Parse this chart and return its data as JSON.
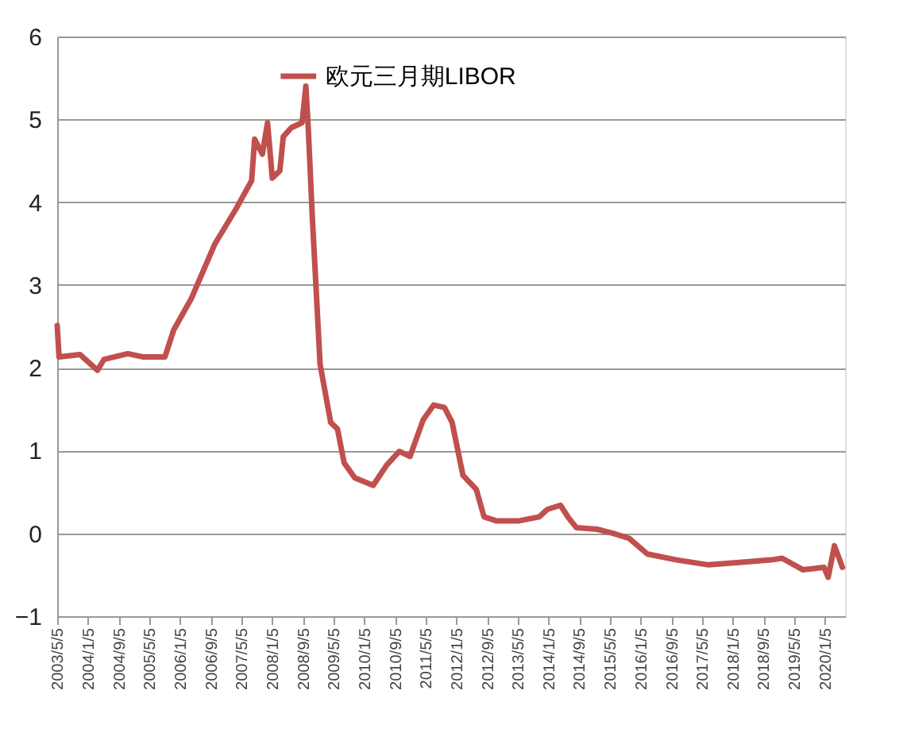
{
  "chart_data": {
    "type": "line",
    "x": [
      "2003-05-05",
      "2003-05-20",
      "2003-11-01",
      "2004-03-20",
      "2004-05-10",
      "2004-11-15",
      "2005-03-20",
      "2005-09-05",
      "2005-11-15",
      "2006-04-01",
      "2006-10-08",
      "2007-03-20",
      "2007-07-25",
      "2007-08-18",
      "2007-10-18",
      "2007-11-28",
      "2008-01-05",
      "2008-03-05",
      "2008-04-01",
      "2008-06-05",
      "2008-08-28",
      "2008-09-27",
      "2008-10-15",
      "2008-11-18",
      "2009-01-18",
      "2009-04-12",
      "2009-06-05",
      "2009-07-28",
      "2009-10-20",
      "2010-03-15",
      "2010-06-28",
      "2010-10-08",
      "2011-01-01",
      "2011-04-15",
      "2011-07-08",
      "2011-10-01",
      "2011-12-01",
      "2012-02-25",
      "2012-06-10",
      "2012-08-10",
      "2012-11-20",
      "2013-05-08",
      "2013-10-22",
      "2013-12-25",
      "2014-04-08",
      "2014-06-10",
      "2014-08-12",
      "2015-01-25",
      "2015-05-30",
      "2015-10-05",
      "2016-02-28",
      "2016-10-15",
      "2017-06-25",
      "2018-03-01",
      "2018-11-05",
      "2019-01-30",
      "2019-07-15",
      "2019-12-28",
      "2020-01-30",
      "2020-03-20",
      "2020-05-22"
    ],
    "series": [
      {
        "name": "欧元三月期LIBOR",
        "color": "#c0504d",
        "values": [
          2.51,
          2.13,
          2.16,
          1.97,
          2.1,
          2.17,
          2.13,
          2.13,
          2.46,
          2.83,
          3.5,
          3.91,
          4.26,
          4.76,
          4.58,
          4.96,
          4.29,
          4.38,
          4.79,
          4.9,
          4.96,
          5.4,
          4.93,
          3.8,
          2.04,
          1.34,
          1.26,
          0.85,
          0.67,
          0.58,
          0.82,
          0.99,
          0.93,
          1.37,
          1.55,
          1.52,
          1.34,
          0.7,
          0.53,
          0.2,
          0.15,
          0.15,
          0.2,
          0.29,
          0.34,
          0.19,
          0.07,
          0.05,
          0.0,
          -0.06,
          -0.25,
          -0.32,
          -0.38,
          -0.35,
          -0.32,
          -0.3,
          -0.44,
          -0.41,
          -0.53,
          -0.15,
          -0.41
        ]
      }
    ],
    "xlim": [
      "2003-05-05",
      "2020-06-12"
    ],
    "xticks": [
      {
        "value": "2003-05-05",
        "label": "2003/5/5"
      },
      {
        "value": "2004-01-05",
        "label": "2004/1/5"
      },
      {
        "value": "2004-09-05",
        "label": "2004/9/5"
      },
      {
        "value": "2005-05-05",
        "label": "2005/5/5"
      },
      {
        "value": "2006-01-05",
        "label": "2006/1/5"
      },
      {
        "value": "2006-09-05",
        "label": "2006/9/5"
      },
      {
        "value": "2007-05-05",
        "label": "2007/5/5"
      },
      {
        "value": "2008-01-05",
        "label": "2008/1/5"
      },
      {
        "value": "2008-09-05",
        "label": "2008/9/5"
      },
      {
        "value": "2009-05-05",
        "label": "2009/5/5"
      },
      {
        "value": "2010-01-05",
        "label": "2010/1/5"
      },
      {
        "value": "2010-09-05",
        "label": "2010/9/5"
      },
      {
        "value": "2011-05-05",
        "label": "2011/5/5"
      },
      {
        "value": "2012-01-05",
        "label": "2012/1/5"
      },
      {
        "value": "2012-09-05",
        "label": "2012/9/5"
      },
      {
        "value": "2013-05-05",
        "label": "2013/5/5"
      },
      {
        "value": "2014-01-05",
        "label": "2014/1/5"
      },
      {
        "value": "2014-09-05",
        "label": "2014/9/5"
      },
      {
        "value": "2015-05-05",
        "label": "2015/5/5"
      },
      {
        "value": "2016-01-05",
        "label": "2016/1/5"
      },
      {
        "value": "2016-09-05",
        "label": "2016/9/5"
      },
      {
        "value": "2017-05-05",
        "label": "2017/5/5"
      },
      {
        "value": "2018-01-05",
        "label": "2018/1/5"
      },
      {
        "value": "2018-09-05",
        "label": "2018/9/5"
      },
      {
        "value": "2019-05-05",
        "label": "2019/5/5"
      },
      {
        "value": "2020-01-05",
        "label": "2020/1/5"
      }
    ],
    "ylim": [
      -1,
      6
    ],
    "yticks": [
      -1,
      0,
      1,
      2,
      3,
      4,
      5,
      6
    ],
    "grid": "y",
    "legend": "top",
    "marker": "none",
    "line_style": "solid"
  }
}
